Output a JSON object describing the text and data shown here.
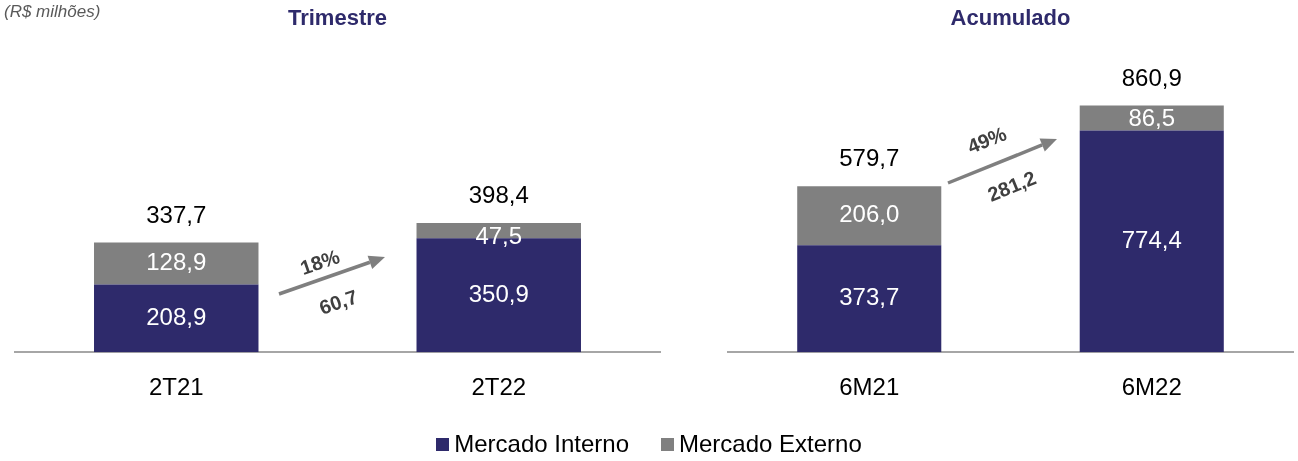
{
  "chart_data": [
    {
      "type": "bar",
      "title": "Trimestre",
      "subtitle": "(R$ milhões)",
      "stacked": true,
      "categories": [
        "2T21",
        "2T22"
      ],
      "tick_labels": "x",
      "grid": false,
      "legend": "bottom",
      "series": [
        {
          "name": "Mercado Interno",
          "color": "#2e2a6b",
          "values": [
            208.9,
            350.9
          ],
          "value_labels": [
            "208,9",
            "350,9"
          ]
        },
        {
          "name": "Mercado Externo",
          "color": "#808080",
          "values": [
            128.9,
            47.5
          ],
          "value_labels": [
            "128,9",
            "47,5"
          ]
        }
      ],
      "totals": [
        "337,7",
        "398,4"
      ],
      "annotations": [
        "18%",
        "60,7"
      ]
    },
    {
      "type": "bar",
      "title": "Acumulado",
      "stacked": true,
      "categories": [
        "6M21",
        "6M22"
      ],
      "tick_labels": "x",
      "grid": false,
      "series": [
        {
          "color": "#2e2a6b",
          "values": [
            373.7,
            774.4
          ],
          "value_labels": [
            "373,7",
            "774,4"
          ]
        },
        {
          "color": "#808080",
          "values": [
            206.0,
            86.5
          ],
          "value_labels": [
            "206,0",
            "86,5"
          ]
        }
      ],
      "totals": [
        "579,7",
        "860,9"
      ],
      "annotations": [
        "49%",
        "281,2"
      ]
    }
  ]
}
